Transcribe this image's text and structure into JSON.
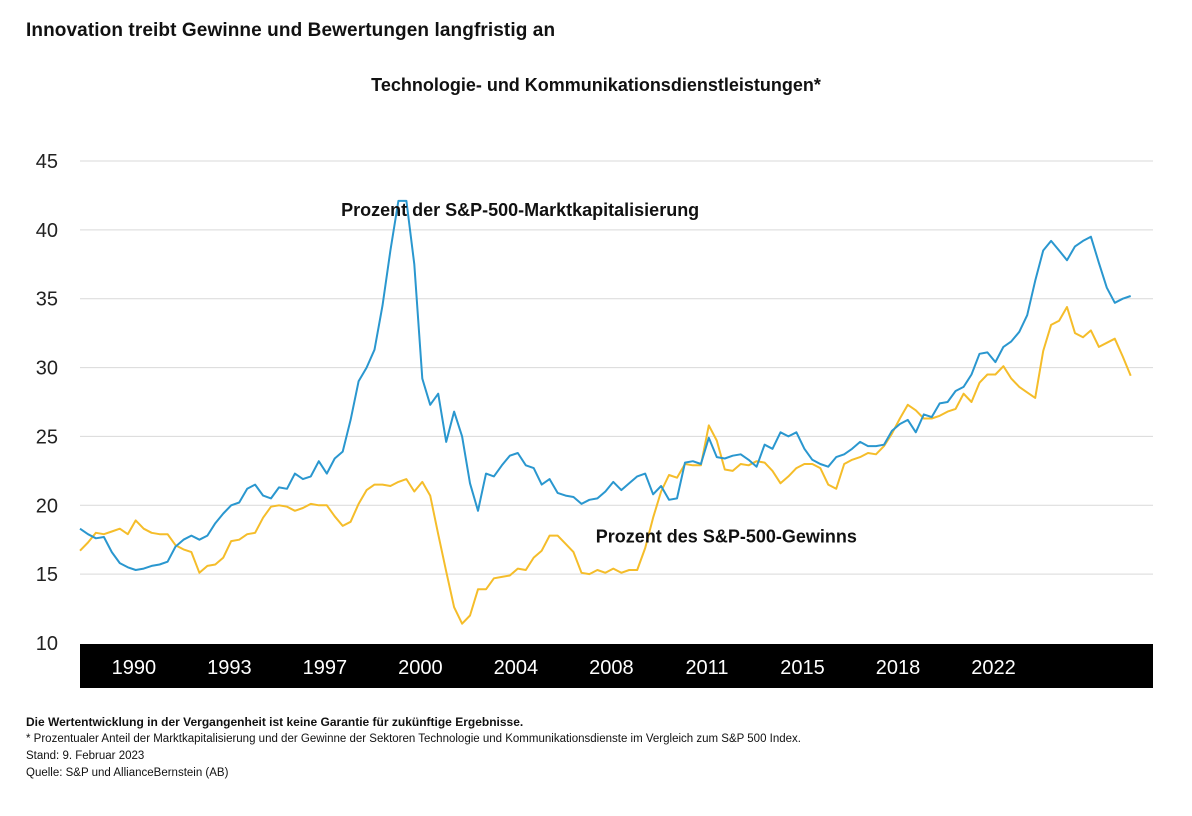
{
  "title": "Innovation treibt Gewinne und Bewertungen langfristig an",
  "subtitle": "Technologie- und Kommunikationsdienstleistungen*",
  "colors": {
    "market_cap": "#2a97cf",
    "earnings": "#f5bd2a",
    "axis_band": "#000000",
    "grid": "#d9d9d9"
  },
  "footnotes": {
    "disclaimer": "Die Wertentwicklung in der Vergangenheit ist keine Garantie für zukünftige Ergebnisse.",
    "note": "* Prozentualer Anteil der Marktkapitalisierung und der Gewinne der Sektoren Technologie und Kommunikationsdienste im Vergleich zum S&P 500 Index.",
    "date": "Stand: 9. Februar 2023",
    "source": "Quelle: S&P und AllianceBernstein (AB)"
  },
  "chart_data": {
    "type": "line",
    "title": "Technologie- und Kommunikationsdienstleistungen*",
    "xlabel": "",
    "ylabel": "",
    "xlim": [
      1989.0,
      2022.7
    ],
    "ylim": [
      10,
      45
    ],
    "yticks": [
      10,
      15,
      20,
      25,
      30,
      35,
      40,
      45
    ],
    "x_tick_labels": [
      {
        "label": "1990",
        "x": 1990.0
      },
      {
        "label": "1993",
        "x": 1993.0
      },
      {
        "label": "1997",
        "x": 1996.0
      },
      {
        "label": "2000",
        "x": 1999.0
      },
      {
        "label": "2004",
        "x": 2002.0
      },
      {
        "label": "2008",
        "x": 2005.0
      },
      {
        "label": "2011",
        "x": 2008.0
      },
      {
        "label": "2015",
        "x": 2011.0
      },
      {
        "label": "2018",
        "x": 2014.0
      },
      {
        "label": "2022",
        "x": 2017.0
      }
    ],
    "grid": true,
    "series": [
      {
        "name": "Prozent der S&P-500-Marktkapitalisierung",
        "label_anchor": [
          1997.2,
          41.0
        ],
        "points": [
          [
            1989.0,
            18.3
          ],
          [
            1989.25,
            17.9
          ],
          [
            1989.5,
            17.6
          ],
          [
            1989.75,
            17.7
          ],
          [
            1990.0,
            16.6
          ],
          [
            1990.25,
            15.8
          ],
          [
            1990.5,
            15.5
          ],
          [
            1990.75,
            15.3
          ],
          [
            1991.0,
            15.4
          ],
          [
            1991.25,
            15.6
          ],
          [
            1991.5,
            15.7
          ],
          [
            1991.75,
            15.9
          ],
          [
            1992.0,
            17.0
          ],
          [
            1992.25,
            17.5
          ],
          [
            1992.5,
            17.8
          ],
          [
            1992.75,
            17.5
          ],
          [
            1993.0,
            17.8
          ],
          [
            1993.25,
            18.7
          ],
          [
            1993.5,
            19.4
          ],
          [
            1993.75,
            20.0
          ],
          [
            1994.0,
            20.2
          ],
          [
            1994.25,
            21.2
          ],
          [
            1994.5,
            21.5
          ],
          [
            1994.75,
            20.7
          ],
          [
            1995.0,
            20.5
          ],
          [
            1995.25,
            21.3
          ],
          [
            1995.5,
            21.2
          ],
          [
            1995.75,
            22.3
          ],
          [
            1996.0,
            21.9
          ],
          [
            1996.25,
            22.1
          ],
          [
            1996.5,
            23.2
          ],
          [
            1996.75,
            22.3
          ],
          [
            1997.0,
            23.4
          ],
          [
            1997.25,
            23.9
          ],
          [
            1997.5,
            26.2
          ],
          [
            1997.75,
            29.0
          ],
          [
            1998.0,
            30.0
          ],
          [
            1998.25,
            31.3
          ],
          [
            1998.5,
            34.5
          ],
          [
            1998.75,
            38.5
          ],
          [
            1999.0,
            42.1
          ],
          [
            1999.25,
            42.1
          ],
          [
            1999.5,
            37.5
          ],
          [
            1999.75,
            29.2
          ],
          [
            2000.0,
            27.3
          ],
          [
            2000.25,
            28.1
          ],
          [
            2000.5,
            24.6
          ],
          [
            2000.75,
            26.8
          ],
          [
            2001.0,
            25.0
          ],
          [
            2001.25,
            21.6
          ],
          [
            2001.5,
            19.6
          ],
          [
            2001.75,
            22.3
          ],
          [
            2002.0,
            22.1
          ],
          [
            2002.25,
            22.9
          ],
          [
            2002.5,
            23.6
          ],
          [
            2002.75,
            23.8
          ],
          [
            2003.0,
            22.9
          ],
          [
            2003.25,
            22.7
          ],
          [
            2003.5,
            21.5
          ],
          [
            2003.75,
            21.9
          ],
          [
            2004.0,
            20.9
          ],
          [
            2004.25,
            20.7
          ],
          [
            2004.5,
            20.6
          ],
          [
            2004.75,
            20.1
          ],
          [
            2005.0,
            20.4
          ],
          [
            2005.25,
            20.5
          ],
          [
            2005.5,
            21.0
          ],
          [
            2005.75,
            21.7
          ],
          [
            2006.0,
            21.1
          ],
          [
            2006.25,
            21.6
          ],
          [
            2006.5,
            22.1
          ],
          [
            2006.75,
            22.3
          ],
          [
            2007.0,
            20.8
          ],
          [
            2007.25,
            21.4
          ],
          [
            2007.5,
            20.4
          ],
          [
            2007.75,
            20.5
          ],
          [
            2008.0,
            23.1
          ],
          [
            2008.25,
            23.2
          ],
          [
            2008.5,
            23.0
          ],
          [
            2008.75,
            24.9
          ],
          [
            2009.0,
            23.5
          ],
          [
            2009.25,
            23.4
          ],
          [
            2009.5,
            23.6
          ],
          [
            2009.75,
            23.7
          ],
          [
            2010.0,
            23.3
          ],
          [
            2010.25,
            22.8
          ],
          [
            2010.5,
            24.4
          ],
          [
            2010.75,
            24.1
          ],
          [
            2011.0,
            25.3
          ],
          [
            2011.25,
            25.0
          ],
          [
            2011.5,
            25.3
          ],
          [
            2011.75,
            24.1
          ],
          [
            2012.0,
            23.3
          ],
          [
            2012.25,
            23.0
          ],
          [
            2012.5,
            22.8
          ],
          [
            2012.75,
            23.5
          ],
          [
            2013.0,
            23.7
          ],
          [
            2013.25,
            24.1
          ],
          [
            2013.5,
            24.6
          ],
          [
            2013.75,
            24.3
          ],
          [
            2014.0,
            24.3
          ],
          [
            2014.25,
            24.4
          ],
          [
            2014.5,
            25.4
          ],
          [
            2014.75,
            25.9
          ],
          [
            2015.0,
            26.2
          ],
          [
            2015.25,
            25.3
          ],
          [
            2015.5,
            26.6
          ],
          [
            2015.75,
            26.4
          ],
          [
            2016.0,
            27.4
          ],
          [
            2016.25,
            27.5
          ],
          [
            2016.5,
            28.3
          ],
          [
            2016.75,
            28.6
          ],
          [
            2017.0,
            29.5
          ],
          [
            2017.25,
            31.0
          ],
          [
            2017.5,
            31.1
          ],
          [
            2017.75,
            30.4
          ],
          [
            2018.0,
            31.5
          ],
          [
            2018.25,
            31.9
          ],
          [
            2018.5,
            32.6
          ],
          [
            2018.75,
            33.8
          ],
          [
            2019.0,
            36.3
          ],
          [
            2019.25,
            38.5
          ],
          [
            2019.5,
            39.2
          ],
          [
            2019.75,
            38.5
          ],
          [
            2020.0,
            37.8
          ],
          [
            2020.25,
            38.8
          ],
          [
            2020.5,
            39.2
          ],
          [
            2020.75,
            39.5
          ],
          [
            2021.0,
            37.6
          ],
          [
            2021.25,
            35.8
          ],
          [
            2021.5,
            34.7
          ],
          [
            2021.75,
            35.0
          ],
          [
            2022.0,
            35.2
          ]
        ]
      },
      {
        "name": "Prozent des S&P-500-Gewinns",
        "label_anchor": [
          2005.2,
          17.3
        ],
        "points": [
          [
            1989.0,
            16.7
          ],
          [
            1989.25,
            17.3
          ],
          [
            1989.5,
            18.0
          ],
          [
            1989.75,
            17.9
          ],
          [
            1990.0,
            18.1
          ],
          [
            1990.25,
            18.3
          ],
          [
            1990.5,
            17.9
          ],
          [
            1990.75,
            18.9
          ],
          [
            1991.0,
            18.3
          ],
          [
            1991.25,
            18.0
          ],
          [
            1991.5,
            17.9
          ],
          [
            1991.75,
            17.9
          ],
          [
            1992.0,
            17.1
          ],
          [
            1992.25,
            16.8
          ],
          [
            1992.5,
            16.6
          ],
          [
            1992.75,
            15.1
          ],
          [
            1993.0,
            15.6
          ],
          [
            1993.25,
            15.7
          ],
          [
            1993.5,
            16.2
          ],
          [
            1993.75,
            17.4
          ],
          [
            1994.0,
            17.5
          ],
          [
            1994.25,
            17.9
          ],
          [
            1994.5,
            18.0
          ],
          [
            1994.75,
            19.1
          ],
          [
            1995.0,
            19.9
          ],
          [
            1995.25,
            20.0
          ],
          [
            1995.5,
            19.9
          ],
          [
            1995.75,
            19.6
          ],
          [
            1996.0,
            19.8
          ],
          [
            1996.25,
            20.1
          ],
          [
            1996.5,
            20.0
          ],
          [
            1996.75,
            20.0
          ],
          [
            1997.0,
            19.2
          ],
          [
            1997.25,
            18.5
          ],
          [
            1997.5,
            18.8
          ],
          [
            1997.75,
            20.1
          ],
          [
            1998.0,
            21.1
          ],
          [
            1998.25,
            21.5
          ],
          [
            1998.5,
            21.5
          ],
          [
            1998.75,
            21.4
          ],
          [
            1999.0,
            21.7
          ],
          [
            1999.25,
            21.9
          ],
          [
            1999.5,
            21.0
          ],
          [
            1999.75,
            21.7
          ],
          [
            2000.0,
            20.7
          ],
          [
            2000.25,
            17.9
          ],
          [
            2000.5,
            15.2
          ],
          [
            2000.75,
            12.6
          ],
          [
            2001.0,
            11.4
          ],
          [
            2001.25,
            12.0
          ],
          [
            2001.5,
            13.9
          ],
          [
            2001.75,
            13.9
          ],
          [
            2002.0,
            14.7
          ],
          [
            2002.25,
            14.8
          ],
          [
            2002.5,
            14.9
          ],
          [
            2002.75,
            15.4
          ],
          [
            2003.0,
            15.3
          ],
          [
            2003.25,
            16.2
          ],
          [
            2003.5,
            16.7
          ],
          [
            2003.75,
            17.8
          ],
          [
            2004.0,
            17.8
          ],
          [
            2004.25,
            17.2
          ],
          [
            2004.5,
            16.6
          ],
          [
            2004.75,
            15.1
          ],
          [
            2005.0,
            15.0
          ],
          [
            2005.25,
            15.3
          ],
          [
            2005.5,
            15.1
          ],
          [
            2005.75,
            15.4
          ],
          [
            2006.0,
            15.1
          ],
          [
            2006.25,
            15.3
          ],
          [
            2006.5,
            15.3
          ],
          [
            2006.75,
            16.9
          ],
          [
            2007.0,
            19.1
          ],
          [
            2007.25,
            21.0
          ],
          [
            2007.5,
            22.2
          ],
          [
            2007.75,
            22.0
          ],
          [
            2008.0,
            23.0
          ],
          [
            2008.25,
            22.9
          ],
          [
            2008.5,
            22.9
          ],
          [
            2008.75,
            25.8
          ],
          [
            2009.0,
            24.7
          ],
          [
            2009.25,
            22.6
          ],
          [
            2009.5,
            22.5
          ],
          [
            2009.75,
            23.0
          ],
          [
            2010.0,
            22.9
          ],
          [
            2010.25,
            23.2
          ],
          [
            2010.5,
            23.1
          ],
          [
            2010.75,
            22.5
          ],
          [
            2011.0,
            21.6
          ],
          [
            2011.25,
            22.1
          ],
          [
            2011.5,
            22.7
          ],
          [
            2011.75,
            23.0
          ],
          [
            2012.0,
            23.0
          ],
          [
            2012.25,
            22.7
          ],
          [
            2012.5,
            21.5
          ],
          [
            2012.75,
            21.2
          ],
          [
            2013.0,
            23.0
          ],
          [
            2013.25,
            23.3
          ],
          [
            2013.5,
            23.5
          ],
          [
            2013.75,
            23.8
          ],
          [
            2014.0,
            23.7
          ],
          [
            2014.25,
            24.3
          ],
          [
            2014.5,
            25.2
          ],
          [
            2014.75,
            26.3
          ],
          [
            2015.0,
            27.3
          ],
          [
            2015.25,
            26.9
          ],
          [
            2015.5,
            26.3
          ],
          [
            2015.75,
            26.3
          ],
          [
            2016.0,
            26.5
          ],
          [
            2016.25,
            26.8
          ],
          [
            2016.5,
            27.0
          ],
          [
            2016.75,
            28.1
          ],
          [
            2017.0,
            27.5
          ],
          [
            2017.25,
            28.9
          ],
          [
            2017.5,
            29.5
          ],
          [
            2017.75,
            29.5
          ],
          [
            2018.0,
            30.1
          ],
          [
            2018.25,
            29.2
          ],
          [
            2018.5,
            28.6
          ],
          [
            2018.75,
            28.2
          ],
          [
            2019.0,
            27.8
          ],
          [
            2019.25,
            31.2
          ],
          [
            2019.5,
            33.1
          ],
          [
            2019.75,
            33.4
          ],
          [
            2020.0,
            34.4
          ],
          [
            2020.25,
            32.5
          ],
          [
            2020.5,
            32.2
          ],
          [
            2020.75,
            32.7
          ],
          [
            2021.0,
            31.5
          ],
          [
            2021.25,
            31.8
          ],
          [
            2021.5,
            32.1
          ],
          [
            2021.75,
            30.8
          ],
          [
            2022.0,
            29.4
          ]
        ]
      }
    ]
  }
}
